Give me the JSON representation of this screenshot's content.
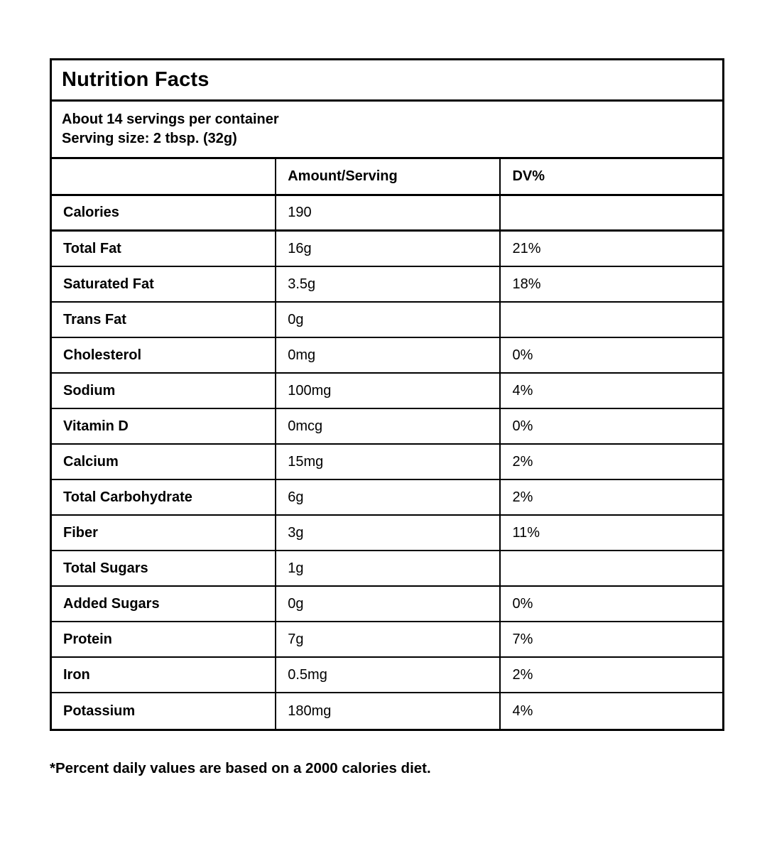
{
  "page": {
    "background_color": "#ffffff",
    "text_color": "#000000",
    "border_color": "#000000"
  },
  "label": {
    "title": "Nutrition Facts",
    "servings_line": "About 14 servings per container",
    "serving_size_line": "Serving size: 2 tbsp. (32g)",
    "header": {
      "amount": "Amount/Serving",
      "dv": "DV%"
    },
    "rows": [
      {
        "name": "Calories",
        "amount": "190",
        "dv": ""
      },
      {
        "name": "Total Fat",
        "amount": "16g",
        "dv": "21%"
      },
      {
        "name": "Saturated Fat",
        "amount": "3.5g",
        "dv": "18%"
      },
      {
        "name": "Trans Fat",
        "amount": "0g",
        "dv": ""
      },
      {
        "name": "Cholesterol",
        "amount": "0mg",
        "dv": "0%"
      },
      {
        "name": "Sodium",
        "amount": "100mg",
        "dv": "4%"
      },
      {
        "name": "Vitamin D",
        "amount": "0mcg",
        "dv": "0%"
      },
      {
        "name": "Calcium",
        "amount": "15mg",
        "dv": "2%"
      },
      {
        "name": "Total Carbohydrate",
        "amount": "6g",
        "dv": "2%"
      },
      {
        "name": "Fiber",
        "amount": "3g",
        "dv": "11%"
      },
      {
        "name": "Total Sugars",
        "amount": "1g",
        "dv": ""
      },
      {
        "name": "Added Sugars",
        "amount": "0g",
        "dv": "0%"
      },
      {
        "name": "Protein",
        "amount": "7g",
        "dv": "7%"
      },
      {
        "name": "Iron",
        "amount": "0.5mg",
        "dv": "2%"
      },
      {
        "name": "Potassium",
        "amount": "180mg",
        "dv": "4%"
      }
    ],
    "footnote": "*Percent daily values are based on a 2000 calories diet."
  }
}
